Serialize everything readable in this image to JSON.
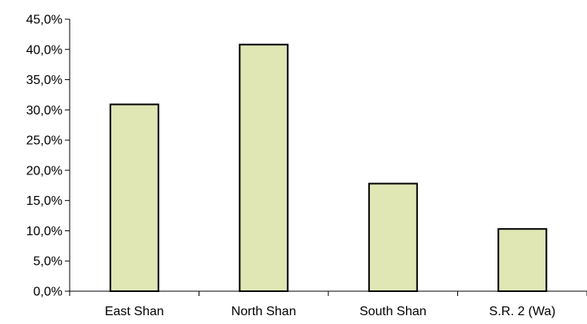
{
  "chart_data": {
    "type": "bar",
    "categories": [
      "East Shan",
      "North Shan",
      "South Shan",
      "S.R. 2 (Wa)"
    ],
    "values": [
      30.9,
      40.8,
      17.8,
      10.3
    ],
    "title": "",
    "xlabel": "",
    "ylabel": "",
    "ylim": [
      0,
      45
    ],
    "ytick_step": 5,
    "yticks": [
      "0,0%",
      "5,0%",
      "10,0%",
      "15,0%",
      "20,0%",
      "25,0%",
      "30,0%",
      "35,0%",
      "40,0%",
      "45,0%"
    ],
    "grid": false,
    "legend": "none",
    "bar_fill": "#e0e6b4",
    "bar_stroke": "#000000",
    "axis_color": "#000000"
  }
}
